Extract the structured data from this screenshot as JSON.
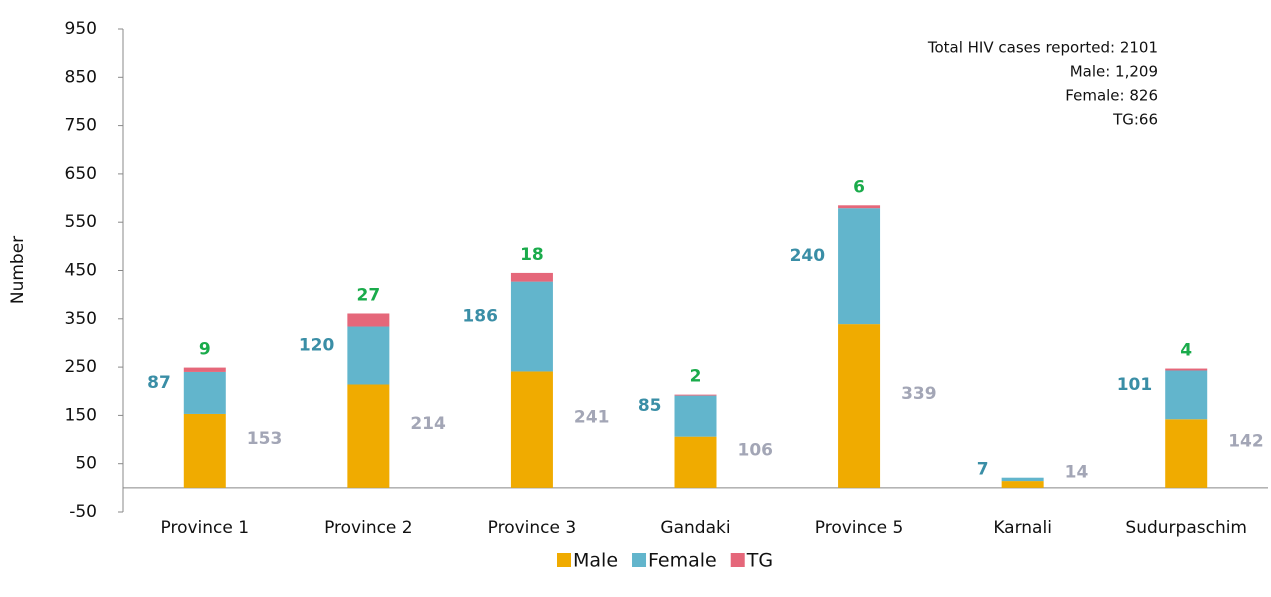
{
  "chart_data": {
    "type": "stacked_bar",
    "y_label": "Number",
    "categories": [
      "Province 1",
      "Province 2",
      "Province 3",
      "Gandaki",
      "Province 5",
      "Karnali",
      "Sudurpaschim"
    ],
    "series": [
      {
        "name": "Male",
        "color": "#f0ab00",
        "label_color": "#a3a6b6",
        "values": [
          153,
          214,
          241,
          106,
          339,
          14,
          142
        ]
      },
      {
        "name": "Female",
        "color": "#62b5cc",
        "label_color": "#3a8ea6",
        "values": [
          87,
          120,
          186,
          85,
          240,
          7,
          101
        ]
      },
      {
        "name": "TG",
        "color": "#e5677a",
        "label_color": "#1aab4b",
        "values": [
          9,
          27,
          18,
          2,
          6,
          null,
          4
        ]
      }
    ],
    "ylim": [
      -50,
      950
    ],
    "yticks": [
      -50,
      50,
      150,
      250,
      350,
      450,
      550,
      650,
      750,
      850,
      950
    ],
    "annotations": [
      "Total HIV cases reported: 2101",
      "Male: 1,209",
      "Female: 826",
      "TG:66"
    ],
    "legend": "bottom"
  }
}
